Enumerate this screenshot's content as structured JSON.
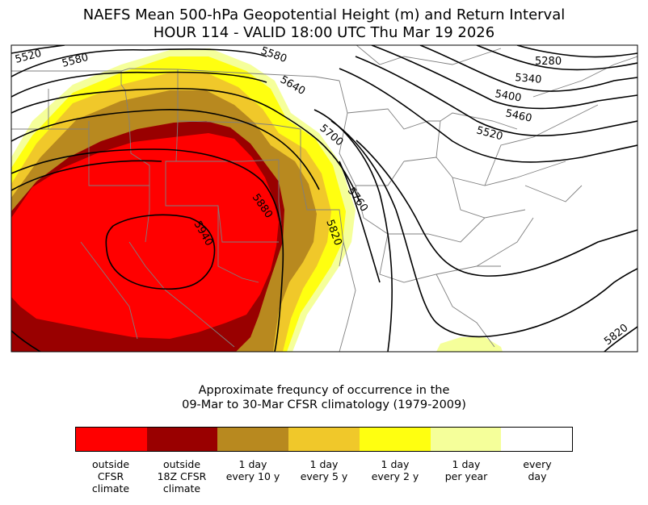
{
  "title": {
    "line1": "NAEFS Mean 500-hPa Geopotential Height (m) and Return Interval",
    "line2": "HOUR 114 - VALID 18:00 UTC Thu Mar 19 2026"
  },
  "contour_labels": [
    "5520",
    "5580",
    "5580",
    "5640",
    "5700",
    "5760",
    "5820",
    "5880",
    "5940",
    "5280",
    "5340",
    "5400",
    "5460",
    "5520",
    "5820"
  ],
  "colorbar": {
    "title_line1": "Approximate frequncy of occurrence in the",
    "title_line2": "09-Mar to 30-Mar CFSR climatology (1979-2009)",
    "colors": [
      "#ff0000",
      "#990000",
      "#b8891f",
      "#f0c82a",
      "#ffff10",
      "#f5ff9a",
      "#ffffff"
    ],
    "ticks": [
      "outside\nCFSR\nclimate",
      "outside\n18Z CFSR\nclimate",
      "1 day\nevery 10 y",
      "1 day\nevery 5 y",
      "1 day\nevery 2 y",
      "1 day\nper year",
      "every\nday"
    ]
  }
}
